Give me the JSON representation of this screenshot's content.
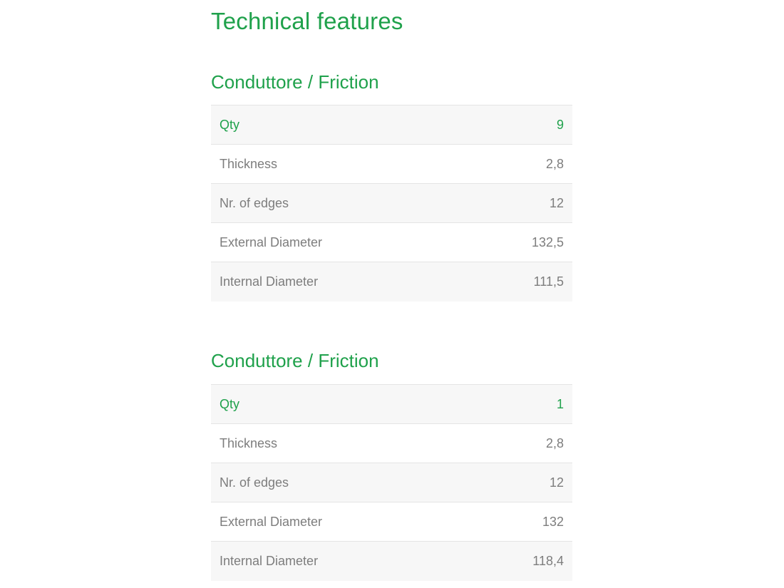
{
  "page": {
    "title": "Technical features"
  },
  "colors": {
    "accent_green": "#1fa14b",
    "text_gray": "#7d7d7d",
    "row_alt_background": "#f7f7f7",
    "row_border": "#e4e4e4",
    "page_background": "#ffffff"
  },
  "sections": [
    {
      "heading": "Conduttore / Friction",
      "rows": [
        {
          "label": "Qty",
          "value": "9"
        },
        {
          "label": "Thickness",
          "value": "2,8"
        },
        {
          "label": "Nr. of edges",
          "value": "12"
        },
        {
          "label": "External Diameter",
          "value": "132,5"
        },
        {
          "label": "Internal Diameter",
          "value": "111,5"
        }
      ]
    },
    {
      "heading": "Conduttore / Friction",
      "rows": [
        {
          "label": "Qty",
          "value": "1"
        },
        {
          "label": "Thickness",
          "value": "2,8"
        },
        {
          "label": "Nr. of edges",
          "value": "12"
        },
        {
          "label": "External Diameter",
          "value": "132"
        },
        {
          "label": "Internal Diameter",
          "value": "118,4"
        }
      ]
    }
  ]
}
